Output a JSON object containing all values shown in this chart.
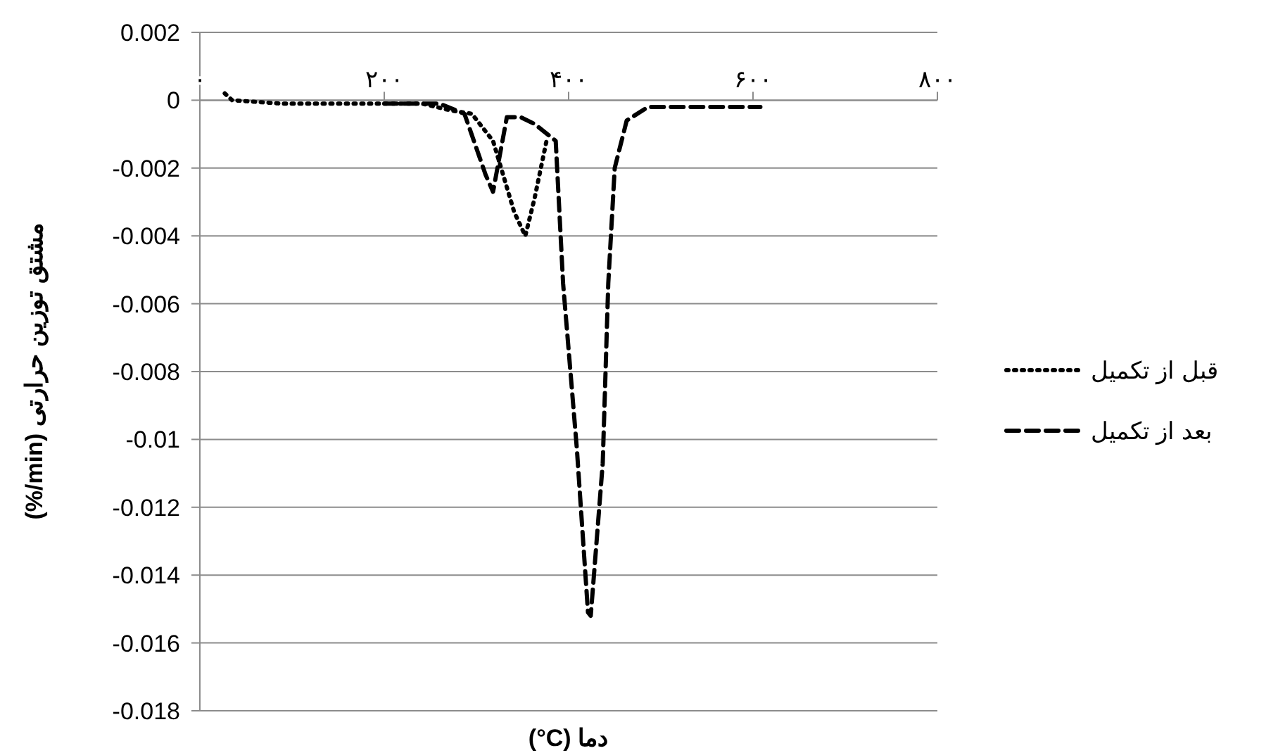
{
  "chart_data": {
    "type": "line",
    "xlabel": "دما (°C)",
    "ylabel": "مشتق توزین حرارتی (%/min)",
    "xlim": [
      0,
      800
    ],
    "xticks": [
      {
        "value": 0,
        "label": "۰"
      },
      {
        "value": 200,
        "label": "۲۰۰"
      },
      {
        "value": 400,
        "label": "۴۰۰"
      },
      {
        "value": 600,
        "label": "۶۰۰"
      },
      {
        "value": 800,
        "label": "۸۰۰"
      }
    ],
    "ylim": [
      -0.018,
      0.002
    ],
    "yticks": [
      0.002,
      0,
      -0.002,
      -0.004,
      -0.006,
      -0.008,
      -0.01,
      -0.012,
      -0.014,
      -0.016,
      -0.018
    ],
    "grid": "y",
    "legend": "right",
    "marker": "none",
    "series": [
      {
        "name": "قبل از تکمیل",
        "color": "#000000",
        "line_style": "dotted",
        "x": [
          27,
          35,
          89,
          241,
          272,
          295,
          318,
          341,
          353,
          363,
          376
        ],
        "values": [
          0.0002,
          0,
          -0.0001,
          -0.0001,
          -0.0003,
          -0.0004,
          -0.0012,
          -0.0033,
          -0.004,
          -0.0029,
          -0.0012
        ]
      },
      {
        "name": "بعد از تکمیل",
        "color": "#000000",
        "line_style": "dashed",
        "x": [
          200,
          260,
          287,
          310,
          318,
          333,
          348,
          363,
          386,
          394,
          409,
          421,
          424,
          437,
          443,
          450,
          463,
          486,
          608
        ],
        "values": [
          -0.0001,
          -0.0001,
          -0.0004,
          -0.0022,
          -0.0027,
          -0.0005,
          -0.0005,
          -0.0007,
          -0.0012,
          -0.0054,
          -0.0103,
          -0.0151,
          -0.0152,
          -0.0107,
          -0.0054,
          -0.002,
          -0.0006,
          -0.0002,
          -0.0002
        ]
      }
    ]
  }
}
